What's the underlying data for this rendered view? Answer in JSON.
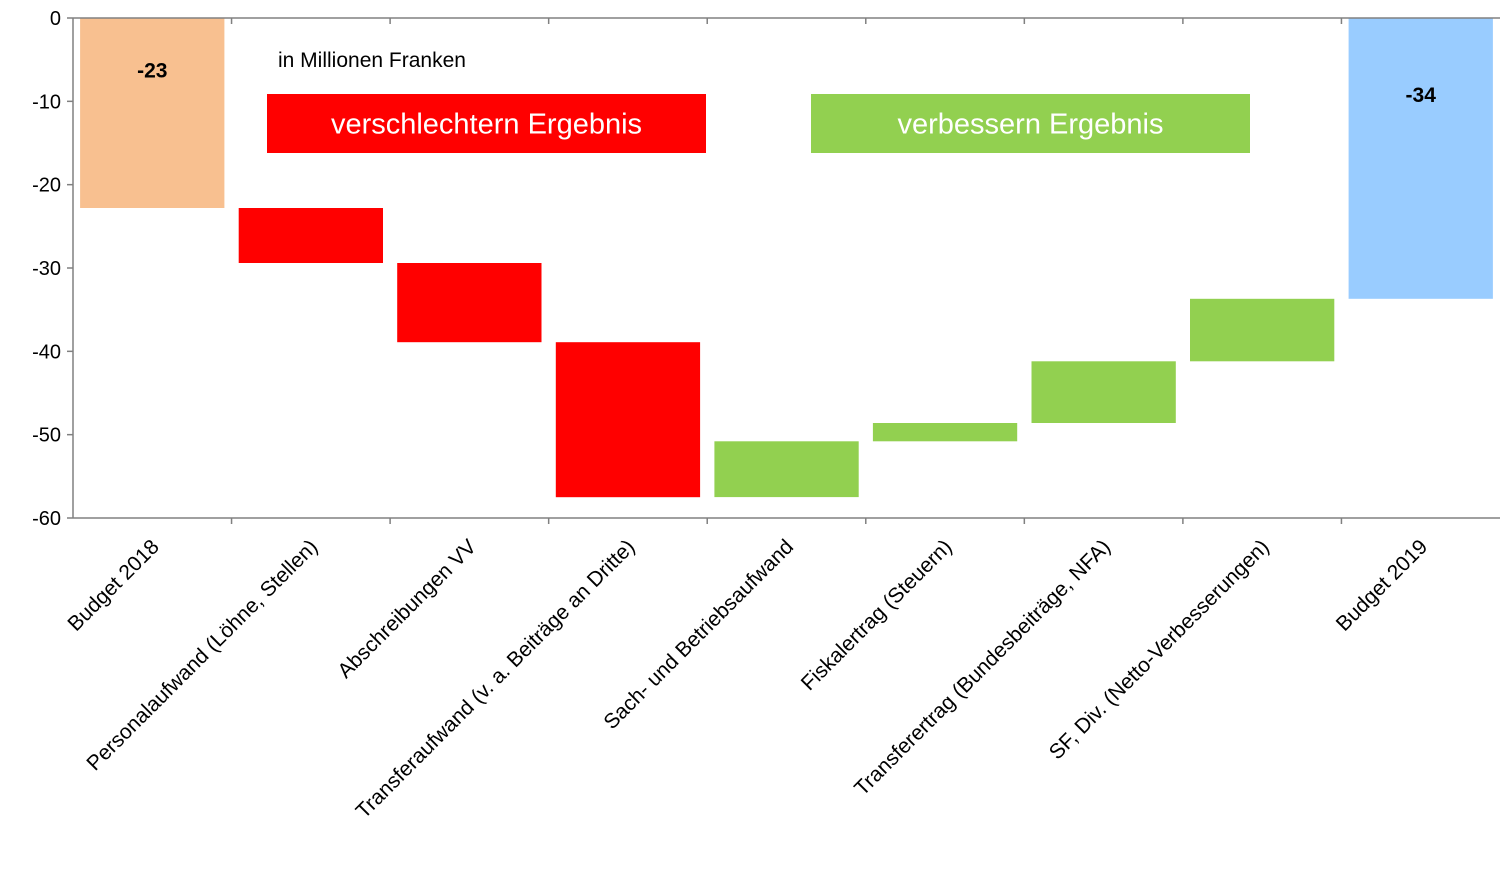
{
  "chart_data": {
    "type": "bar",
    "subtype": "waterfall",
    "title": "",
    "xlabel": "",
    "ylabel": "",
    "unit_note": "in Millionen Franken",
    "ylim": [
      -60,
      0
    ],
    "yticks": [
      0,
      -10,
      -20,
      -30,
      -40,
      -50,
      -60
    ],
    "grid": false,
    "legend": [
      {
        "label": "verschlechtern Ergebnis",
        "color": "#ff0000"
      },
      {
        "label": "verbessern Ergebnis",
        "color": "#92d050"
      }
    ],
    "categories": [
      "Budget 2018",
      "Personalaufwand (Löhne, Stellen)",
      "Abschreibungen VV",
      "Transferaufwand (v. a. Beiträge an Dritte)",
      "Sach- und Betriebsaufwand",
      "Fiskalertrag (Steuern)",
      "Transferertrag (Bundesbeiträge, NFA)",
      "SF, Div. (Netto-Verbesserungen)",
      "Budget 2019"
    ],
    "bars": [
      {
        "start": 0,
        "end": -22.8,
        "kind": "total",
        "color": "#f8c090",
        "label": "-23"
      },
      {
        "start": -22.8,
        "end": -29.4,
        "kind": "worsen",
        "color": "#ff0000"
      },
      {
        "start": -29.4,
        "end": -38.9,
        "kind": "worsen",
        "color": "#ff0000"
      },
      {
        "start": -38.9,
        "end": -57.5,
        "kind": "worsen",
        "color": "#ff0000"
      },
      {
        "start": -57.5,
        "end": -50.8,
        "kind": "improve",
        "color": "#92d050"
      },
      {
        "start": -50.8,
        "end": -48.6,
        "kind": "improve",
        "color": "#92d050"
      },
      {
        "start": -48.6,
        "end": -41.2,
        "kind": "improve",
        "color": "#92d050"
      },
      {
        "start": -41.2,
        "end": -33.7,
        "kind": "improve",
        "color": "#92d050"
      },
      {
        "start": 0,
        "end": -33.7,
        "kind": "total",
        "color": "#99ccff",
        "label": "-34"
      }
    ],
    "axis_color": "#808080"
  }
}
